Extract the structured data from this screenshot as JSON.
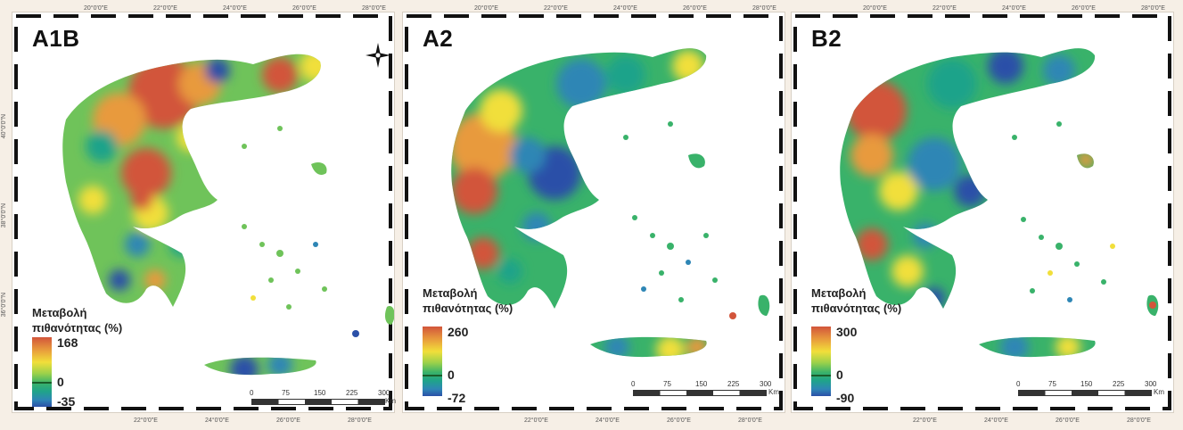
{
  "panels": [
    {
      "id": "a1b",
      "title": "A1B",
      "legend": {
        "title_line1": "Μεταβολή",
        "title_line2": "πιθανότητας (%)",
        "max": "168",
        "zero": "0",
        "min": "-35"
      }
    },
    {
      "id": "a2",
      "title": "A2",
      "legend": {
        "title_line1": "Μεταβολή",
        "title_line2": "πιθανότητας (%)",
        "max": "260",
        "zero": "0",
        "min": "-72"
      }
    },
    {
      "id": "b2",
      "title": "B2",
      "legend": {
        "title_line1": "Μεταβολή",
        "title_line2": "πιθανότητας (%)",
        "max": "300",
        "zero": "0",
        "min": "-90"
      }
    }
  ],
  "scale": {
    "ticks": [
      "0",
      "75",
      "150",
      "225",
      "300"
    ],
    "unit": "Km"
  },
  "coords": {
    "top": [
      "20°0'0\"E",
      "22°0'0\"E",
      "24°0'0\"E",
      "26°0'0\"E",
      "28°0'0\"E"
    ],
    "bottom": [
      "22°0'0\"E",
      "24°0'0\"E",
      "26°0'0\"E",
      "28°0'0\"E"
    ],
    "left": [
      "40°0'0\"N",
      "38°0'0\"N",
      "36°0'0\"N"
    ]
  },
  "colors": {
    "high": "#d2553b",
    "mid_high": "#f1df3a",
    "mid": "#39b26a",
    "low": "#2b50a8"
  },
  "icons": [
    "compass-rose-icon"
  ]
}
